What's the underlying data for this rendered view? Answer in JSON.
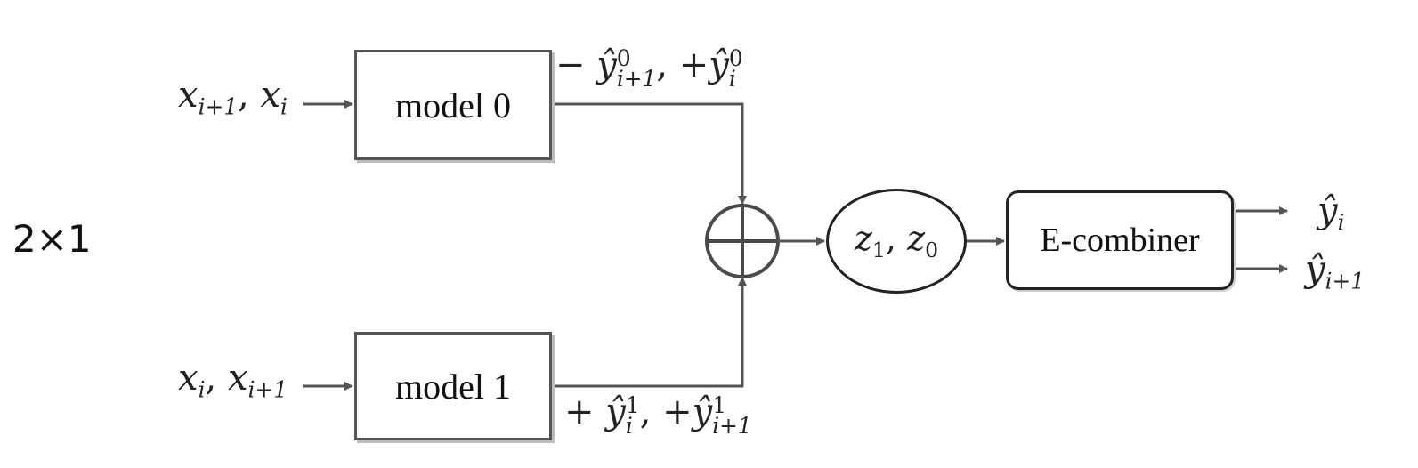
{
  "label_config": "2×1",
  "model0": {
    "label": "model 0"
  },
  "model1": {
    "label": "model 1"
  },
  "combiner": {
    "label": "E-combiner"
  },
  "ellipse": {
    "z1": "z",
    "z1_sub": "1",
    "z0": "z",
    "z0_sub": "0"
  },
  "input0": {
    "a": "x",
    "a_sub": "i+1",
    "b": "x",
    "b_sub": "i"
  },
  "input1": {
    "a": "x",
    "a_sub": "i",
    "b": "x",
    "b_sub": "i+1"
  },
  "out0": {
    "sign1": "−",
    "y": "ŷ",
    "sup1": "0",
    "sub1": "i+1",
    "sign2": "+",
    "sup2": "0",
    "sub2": "i"
  },
  "out1": {
    "sign1": "+",
    "y": "ŷ",
    "sup1": "1",
    "sub1": "i",
    "sign2": "+",
    "sup2": "1",
    "sub2": "i+1"
  },
  "final": {
    "y": "ŷ",
    "sub_top": "i",
    "sub_bottom": "i+1"
  },
  "colors": {
    "line": "#555555",
    "sum": "#4a4a4a"
  }
}
